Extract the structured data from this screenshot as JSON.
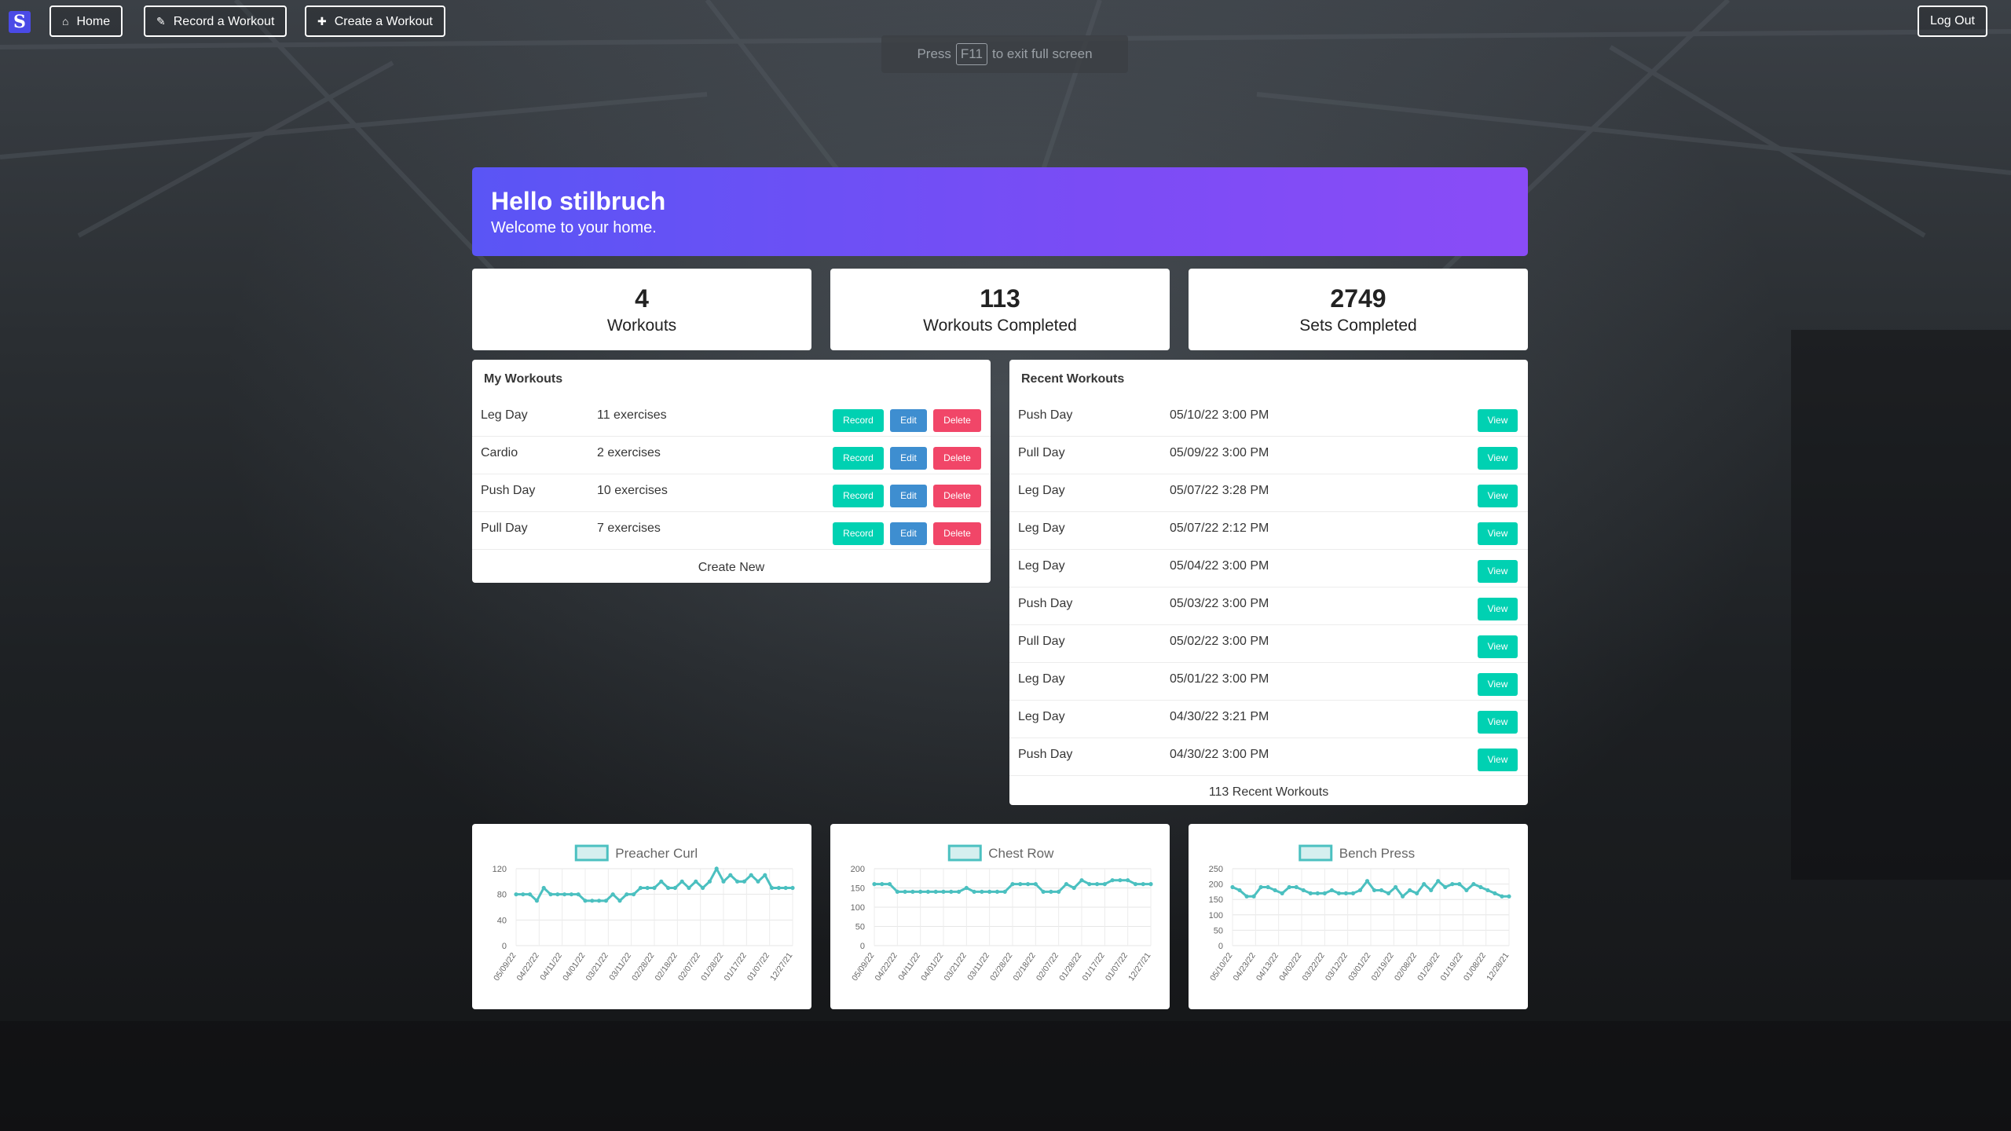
{
  "nav": {
    "brand_letter": "S",
    "home": "Home",
    "record": "Record a Workout",
    "create": "Create a Workout",
    "logout": "Log Out"
  },
  "fullscreen_toast": {
    "press": "Press",
    "key": "F11",
    "suffix": "to exit full screen"
  },
  "hero": {
    "title": "Hello stilbruch",
    "subtitle": "Welcome to your home."
  },
  "stats": [
    {
      "value": "4",
      "label": "Workouts"
    },
    {
      "value": "113",
      "label": "Workouts Completed"
    },
    {
      "value": "2749",
      "label": "Sets Completed"
    }
  ],
  "my_workouts": {
    "title": "My Workouts",
    "rows": [
      {
        "name": "Leg Day",
        "exercises": "11 exercises"
      },
      {
        "name": "Cardio",
        "exercises": "2 exercises"
      },
      {
        "name": "Push Day",
        "exercises": "10 exercises"
      },
      {
        "name": "Pull Day",
        "exercises": "7 exercises"
      }
    ],
    "record_label": "Record",
    "edit_label": "Edit",
    "delete_label": "Delete",
    "footer": "Create New"
  },
  "recent_workouts": {
    "title": "Recent Workouts",
    "rows": [
      {
        "name": "Push Day",
        "date": "05/10/22 3:00 PM"
      },
      {
        "name": "Pull Day",
        "date": "05/09/22 3:00 PM"
      },
      {
        "name": "Leg Day",
        "date": "05/07/22 3:28 PM"
      },
      {
        "name": "Leg Day",
        "date": "05/07/22 2:12 PM"
      },
      {
        "name": "Leg Day",
        "date": "05/04/22 3:00 PM"
      },
      {
        "name": "Push Day",
        "date": "05/03/22 3:00 PM"
      },
      {
        "name": "Pull Day",
        "date": "05/02/22 3:00 PM"
      },
      {
        "name": "Leg Day",
        "date": "05/01/22 3:00 PM"
      },
      {
        "name": "Leg Day",
        "date": "04/30/22 3:21 PM"
      },
      {
        "name": "Push Day",
        "date": "04/30/22 3:00 PM"
      }
    ],
    "view_label": "View",
    "footer": "113 Recent Workouts"
  },
  "colors": {
    "line": "#4bc0c0",
    "legend_fill": "#d5efef",
    "accent_teal": "#00d1b2",
    "accent_blue": "#3e8ed0",
    "accent_red": "#f14668"
  },
  "chart_data": [
    {
      "type": "line",
      "series": [
        {
          "name": "Preacher Curl",
          "values": [
            80,
            80,
            80,
            70,
            90,
            80,
            80,
            80,
            80,
            80,
            70,
            70,
            70,
            70,
            80,
            70,
            80,
            80,
            90,
            90,
            90,
            100,
            90,
            90,
            100,
            90,
            100,
            90,
            100,
            120,
            100,
            110,
            100,
            100,
            110,
            100,
            110,
            90,
            90,
            90,
            90
          ]
        }
      ],
      "ylim": [
        0,
        120
      ],
      "yticks": [
        0,
        40,
        80,
        120
      ],
      "x_tick_labels": [
        "05/09/22",
        "04/22/22",
        "04/11/22",
        "04/01/22",
        "03/21/22",
        "03/11/22",
        "02/28/22",
        "02/18/22",
        "02/07/22",
        "01/28/22",
        "01/17/22",
        "01/07/22",
        "12/27/21"
      ]
    },
    {
      "type": "line",
      "series": [
        {
          "name": "Chest Row",
          "values": [
            160,
            160,
            160,
            140,
            140,
            140,
            140,
            140,
            140,
            140,
            140,
            140,
            150,
            140,
            140,
            140,
            140,
            140,
            160,
            160,
            160,
            160,
            140,
            140,
            140,
            160,
            150,
            170,
            160,
            160,
            160,
            170,
            170,
            170,
            160,
            160,
            160
          ]
        }
      ],
      "ylim": [
        0,
        200
      ],
      "yticks": [
        0,
        50,
        100,
        150,
        200
      ],
      "x_tick_labels": [
        "05/09/22",
        "04/22/22",
        "04/11/22",
        "04/01/22",
        "03/21/22",
        "03/11/22",
        "02/28/22",
        "02/18/22",
        "02/07/22",
        "01/28/22",
        "01/17/22",
        "01/07/22",
        "12/27/21"
      ]
    },
    {
      "type": "line",
      "series": [
        {
          "name": "Bench Press",
          "values": [
            190,
            180,
            160,
            160,
            190,
            190,
            180,
            170,
            190,
            190,
            180,
            170,
            170,
            170,
            180,
            170,
            170,
            170,
            180,
            210,
            180,
            180,
            170,
            190,
            160,
            180,
            170,
            200,
            180,
            210,
            190,
            200,
            200,
            180,
            200,
            190,
            180,
            170,
            160,
            160
          ]
        }
      ],
      "ylim": [
        0,
        250
      ],
      "yticks": [
        0,
        50,
        100,
        150,
        200,
        250
      ],
      "x_tick_labels": [
        "05/10/22",
        "04/23/22",
        "04/13/22",
        "04/02/22",
        "03/22/22",
        "03/12/22",
        "03/01/22",
        "02/19/22",
        "02/08/22",
        "01/29/22",
        "01/19/22",
        "01/08/22",
        "12/28/21"
      ]
    }
  ]
}
